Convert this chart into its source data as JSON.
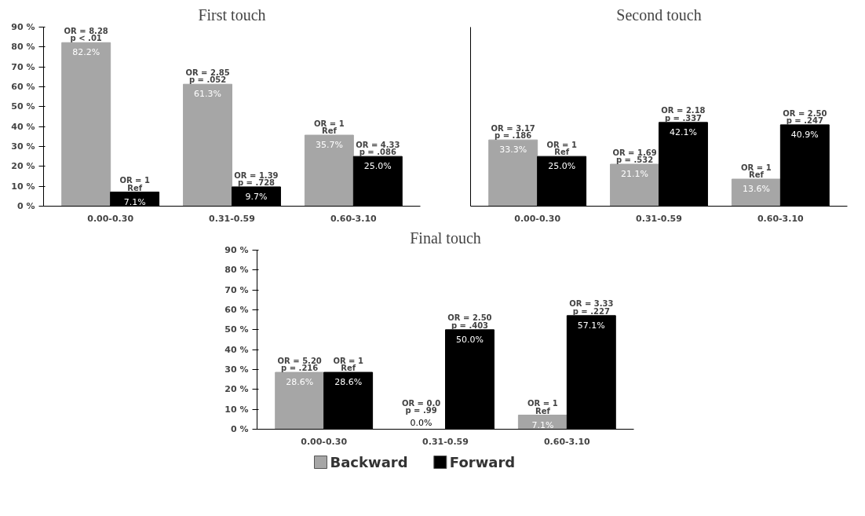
{
  "chart_data": [
    {
      "type": "bar",
      "title": "First touch",
      "categories": [
        "0.00-0.30",
        "0.31-0.59",
        "0.60-3.10"
      ],
      "series": [
        {
          "color": "#a6a6a6",
          "values": [
            82.2,
            61.3,
            35.7
          ],
          "value_labels": [
            "82.2%",
            "61.3%",
            "35.7%"
          ]
        },
        {
          "color": "#000000",
          "values": [
            7.1,
            9.7,
            25.0
          ],
          "value_labels": [
            "7.1%",
            "9.7%",
            "25.0%"
          ]
        }
      ],
      "ylim": [
        0,
        90
      ],
      "yticks": [
        {
          "value": 0,
          "label": "0 %"
        },
        {
          "value": 10,
          "label": "10 %"
        },
        {
          "value": 20,
          "label": "20 %"
        },
        {
          "value": 30,
          "label": "30 %"
        },
        {
          "value": 40,
          "label": "40 %"
        },
        {
          "value": 50,
          "label": "50 %"
        },
        {
          "value": 60,
          "label": "60 %"
        },
        {
          "value": 70,
          "label": "70 %"
        },
        {
          "value": 80,
          "label": "80 %"
        },
        {
          "value": 90,
          "label": "90 %"
        }
      ],
      "annotations": [
        "OR = 8.28\np < .01",
        "OR = 2.85\np = .052",
        "OR = 1\nRef",
        "OR = 1\nRef",
        "OR = 1.39\np = .728",
        "OR = 4.33\np = .086"
      ],
      "grid": false
    },
    {
      "type": "bar",
      "title": "Second touch",
      "categories": [
        "0.00-0.30",
        "0.31-0.59",
        "0.60-3.10"
      ],
      "series": [
        {
          "color": "#a6a6a6",
          "values": [
            33.3,
            21.1,
            13.6
          ],
          "value_labels": [
            "33.3%",
            "21.1%",
            "13.6%"
          ]
        },
        {
          "color": "#000000",
          "values": [
            25.0,
            42.1,
            40.9
          ],
          "value_labels": [
            "25.0%",
            "42.1%",
            "40.9%"
          ]
        }
      ],
      "ylim": [
        0,
        90
      ],
      "tick_labels": "x",
      "annotations": [
        "OR = 3.17\np = .186",
        "OR = 1.69\np = .532",
        "OR = 1\nRef",
        "OR = 1\nRef",
        "OR = 2.18\np = .337",
        "OR = 2.50\np = .247"
      ],
      "grid": false
    },
    {
      "type": "bar",
      "title": "Final touch",
      "categories": [
        "0.00-0.30",
        "0.31-0.59",
        "0.60-3.10"
      ],
      "series": [
        {
          "name": "Backward",
          "color": "#a6a6a6",
          "values": [
            28.6,
            0.0,
            7.1
          ],
          "value_labels": [
            "28.6%",
            "0.0%",
            "7.1%"
          ]
        },
        {
          "name": "Forward",
          "color": "#000000",
          "values": [
            28.6,
            50.0,
            57.1
          ],
          "value_labels": [
            "28.6%",
            "50.0%",
            "57.1%"
          ]
        }
      ],
      "ylim": [
        0,
        90
      ],
      "yticks": [
        {
          "value": 0,
          "label": "0 %"
        },
        {
          "value": 10,
          "label": "10 %"
        },
        {
          "value": 20,
          "label": "20 %"
        },
        {
          "value": 30,
          "label": "30 %"
        },
        {
          "value": 40,
          "label": "40 %"
        },
        {
          "value": 50,
          "label": "50 %"
        },
        {
          "value": 60,
          "label": "60 %"
        },
        {
          "value": 70,
          "label": "70 %"
        },
        {
          "value": 80,
          "label": "80 %"
        },
        {
          "value": 90,
          "label": "90 %"
        }
      ],
      "annotations": [
        "OR = 5.20\np = .216",
        "OR = 0.0\np = .99",
        "OR = 1\nRef",
        "OR = 1\nRef",
        "OR = 2.50\np = .403",
        "OR = 3.33\np = .227"
      ],
      "grid": false,
      "legend": "bottom"
    }
  ]
}
